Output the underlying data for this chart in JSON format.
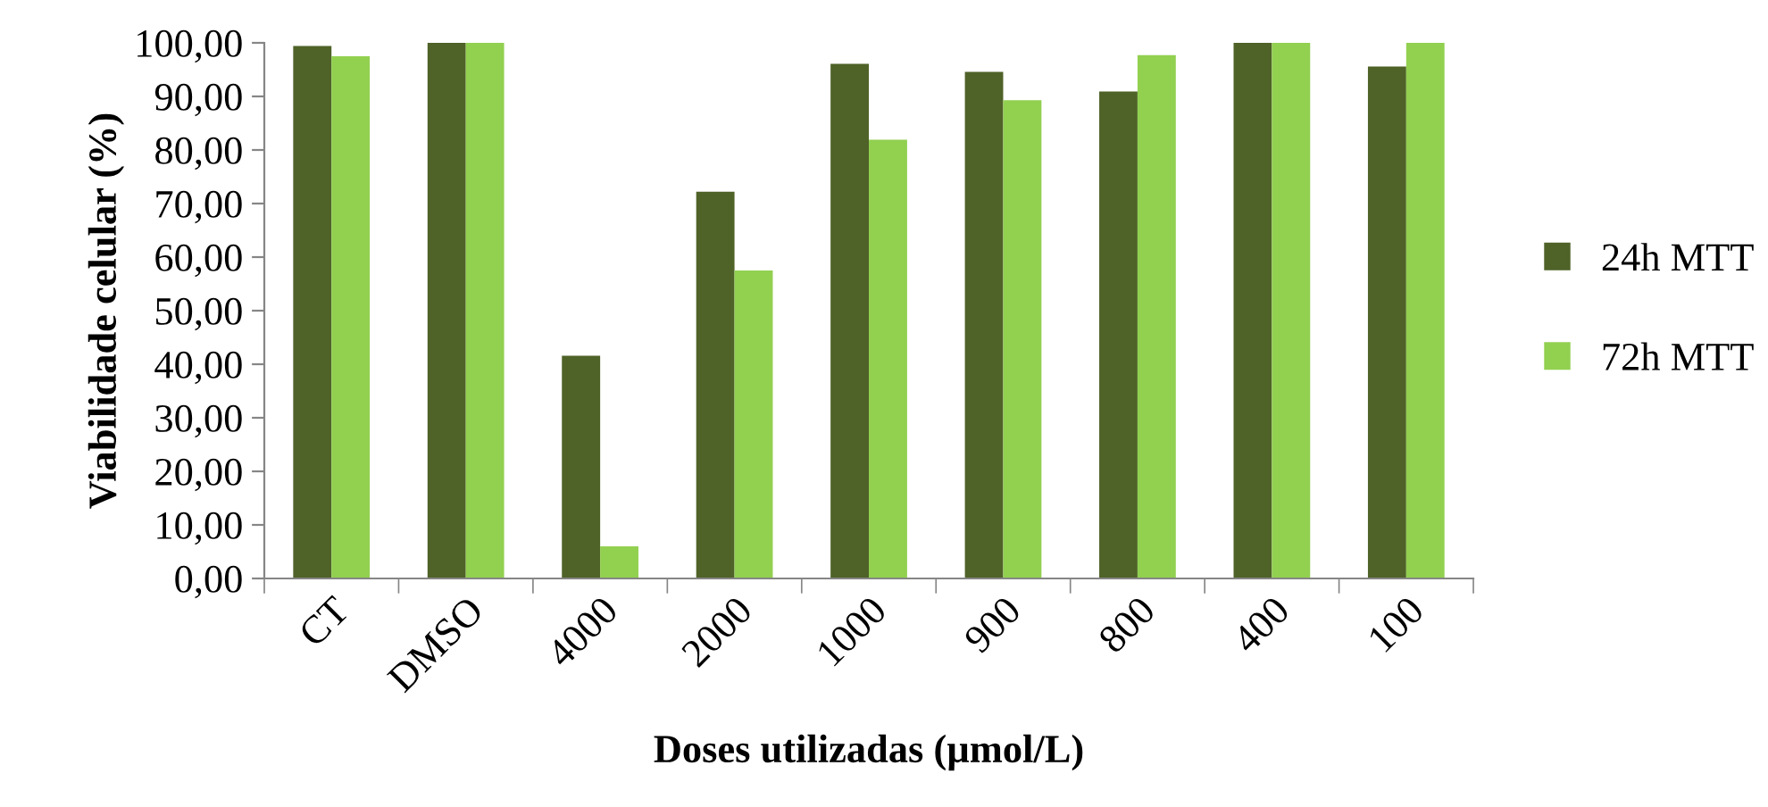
{
  "chart_data": {
    "type": "bar",
    "xlabel": "Doses utilizadas (µmol/L)",
    "ylabel": "Viabilidade celular (%)",
    "categories": [
      "CT",
      "DMSO",
      "4000",
      "2000",
      "1000",
      "900",
      "800",
      "400",
      "100"
    ],
    "series": [
      {
        "name": "24h MTT",
        "color": "#4f6228",
        "values": [
          99.4,
          100,
          41.6,
          72.2,
          96.1,
          94.6,
          90.9,
          100,
          95.6
        ]
      },
      {
        "name": "72h MTT",
        "color": "#92d050",
        "values": [
          97.5,
          100,
          6.0,
          57.5,
          81.9,
          89.3,
          97.7,
          100,
          100
        ]
      }
    ],
    "ylim": [
      0,
      100
    ],
    "yticks": [
      {
        "value": 0,
        "label": "0,00"
      },
      {
        "value": 10,
        "label": "10,00"
      },
      {
        "value": 20,
        "label": "20,00"
      },
      {
        "value": 30,
        "label": "30,00"
      },
      {
        "value": 40,
        "label": "40,00"
      },
      {
        "value": 50,
        "label": "50,00"
      },
      {
        "value": 60,
        "label": "60,00"
      },
      {
        "value": 70,
        "label": "70,00"
      },
      {
        "value": 80,
        "label": "80,00"
      },
      {
        "value": 90,
        "label": "90,00"
      },
      {
        "value": 100,
        "label": "100,00"
      }
    ],
    "grid": false,
    "legend": "right"
  }
}
